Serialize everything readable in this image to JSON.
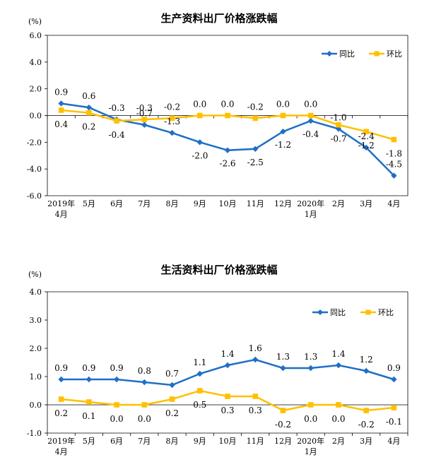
{
  "chart_data": [
    {
      "type": "line",
      "title": "生产资料出厂价格涨跌幅",
      "unit_label": "(%)",
      "ylim": [
        -6,
        6
      ],
      "yticks": [
        "6.0",
        "4.0",
        "2.0",
        "0.0",
        "-2.0",
        "-4.0",
        "-6.0"
      ],
      "categories": [
        "2019年\n4月",
        "5月",
        "6月",
        "7月",
        "8月",
        "9月",
        "10月",
        "11月",
        "12月",
        "2020年\n1月",
        "2月",
        "3月",
        "4月"
      ],
      "legend_position": "top-right",
      "grid": false,
      "series": [
        {
          "name": "同比",
          "color": "#1F6FC6",
          "marker": "diamond",
          "values": [
            0.9,
            0.6,
            -0.3,
            -0.7,
            -1.3,
            -2.0,
            -2.6,
            -2.5,
            -1.2,
            -0.4,
            -1.0,
            -2.4,
            -4.5
          ],
          "labels": [
            "0.9",
            "0.6",
            "-0.3",
            "-0.7",
            "-1.3",
            "-2.0",
            "-2.6",
            "-2.5",
            "-1.2",
            "-0.4",
            "-1.0",
            "-2.4",
            "-4.5"
          ]
        },
        {
          "name": "环比",
          "color": "#FFC000",
          "marker": "square",
          "values": [
            0.4,
            0.2,
            -0.4,
            -0.3,
            -0.2,
            0.0,
            0.0,
            -0.2,
            0.0,
            0.0,
            -0.7,
            -1.2,
            -1.8
          ],
          "labels": [
            "0.4",
            "0.2",
            "-0.4",
            "-0.3",
            "-0.2",
            "0.0",
            "0.0",
            "-0.2",
            "0.0",
            "0.0",
            "-0.7",
            "-1.2",
            "-1.8"
          ]
        }
      ]
    },
    {
      "type": "line",
      "title": "生活资料出厂价格涨跌幅",
      "unit_label": "(%)",
      "ylim": [
        -1,
        4
      ],
      "yticks": [
        "4.0",
        "3.0",
        "2.0",
        "1.0",
        "0.0",
        "-1.0"
      ],
      "categories": [
        "2019年\n4月",
        "5月",
        "6月",
        "7月",
        "8月",
        "9月",
        "10月",
        "11月",
        "12月",
        "2020年\n1月",
        "2月",
        "3月",
        "4月"
      ],
      "legend_position": "top-right",
      "grid": false,
      "series": [
        {
          "name": "同比",
          "color": "#1F6FC6",
          "marker": "diamond",
          "values": [
            0.9,
            0.9,
            0.9,
            0.8,
            0.7,
            1.1,
            1.4,
            1.6,
            1.3,
            1.3,
            1.4,
            1.2,
            0.9
          ],
          "labels": [
            "0.9",
            "0.9",
            "0.9",
            "0.8",
            "0.7",
            "1.1",
            "1.4",
            "1.6",
            "1.3",
            "1.3",
            "1.4",
            "1.2",
            "0.9"
          ]
        },
        {
          "name": "环比",
          "color": "#FFC000",
          "marker": "square",
          "values": [
            0.2,
            0.1,
            0.0,
            0.0,
            0.2,
            0.5,
            0.3,
            0.3,
            -0.2,
            0.0,
            0.0,
            -0.2,
            -0.1
          ],
          "labels": [
            "0.2",
            "0.1",
            "0.0",
            "0.0",
            "0.2",
            "0.5",
            "0.3",
            "0.3",
            "-0.2",
            "0.0",
            "0.0",
            "-0.2",
            "-0.1"
          ]
        }
      ]
    }
  ]
}
